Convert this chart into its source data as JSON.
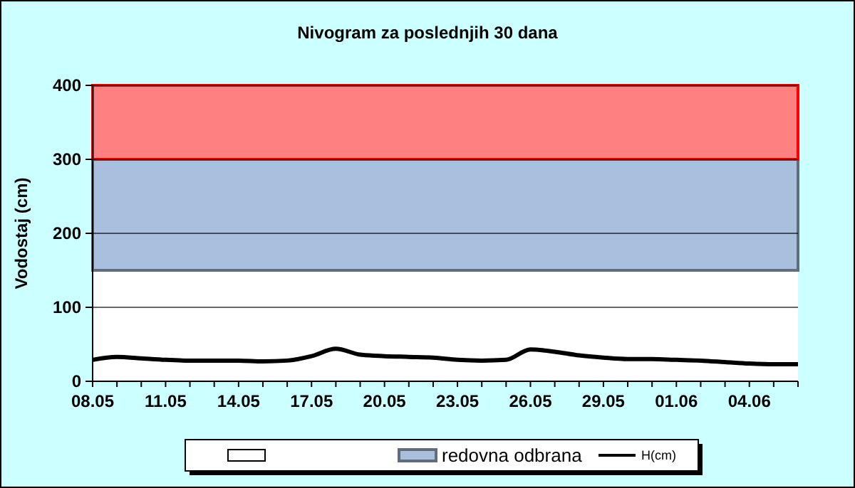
{
  "chart_data": {
    "type": "line",
    "title": "Nivogram za poslednjih 30 dana",
    "ylabel": "Vodostaj (cm)",
    "categories": [
      "08.05",
      null,
      null,
      "11.05",
      null,
      null,
      "14.05",
      null,
      null,
      "17.05",
      null,
      null,
      "20.05",
      null,
      null,
      "23.05",
      null,
      null,
      "26.05",
      null,
      null,
      "29.05",
      null,
      null,
      "01.06",
      null,
      null,
      "04.06",
      null,
      null
    ],
    "series": [
      {
        "name": "H(cm)",
        "color": "#000000",
        "values": [
          29,
          33,
          31,
          29,
          28,
          28,
          28,
          27,
          28,
          34,
          44,
          36,
          34,
          33,
          32,
          29,
          28,
          29,
          43,
          40,
          35,
          32,
          30,
          30,
          29,
          28,
          26,
          24,
          23,
          23
        ]
      }
    ],
    "ylim": [
      0,
      400
    ],
    "yticks": [
      0,
      100,
      200,
      300,
      400
    ],
    "grid": "y",
    "legend": "bottom",
    "marker": "none",
    "line_style": "solid",
    "bands": [
      {
        "axis": "y",
        "from": 0,
        "to": 150,
        "color": "#ffffff"
      },
      {
        "axis": "y",
        "from": 150,
        "to": 300,
        "label": "redovna odbrana",
        "color": "#a8c0de"
      },
      {
        "axis": "y",
        "from": 300,
        "to": 400,
        "color": "#ff8080"
      }
    ]
  }
}
